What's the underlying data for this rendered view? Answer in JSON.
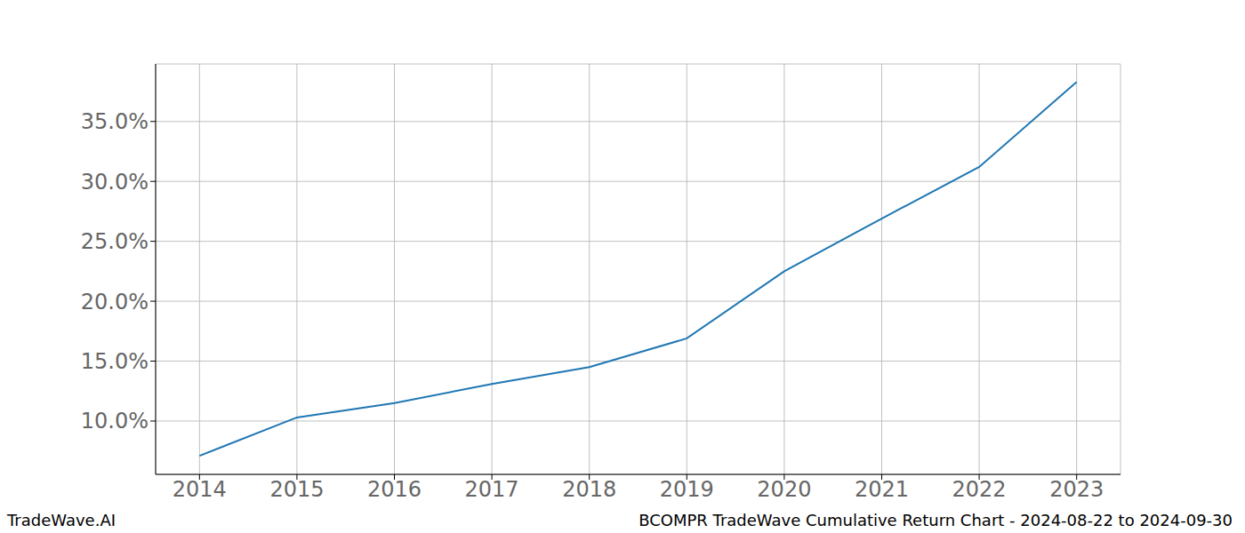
{
  "chart_data": {
    "type": "line",
    "annotations": [
      "TradeWave.AI",
      "BCOMPR TradeWave Cumulative Return Chart - 2024-08-22 to 2024-09-30"
    ],
    "x": [
      2014,
      2015,
      2016,
      2017,
      2018,
      2019,
      2020,
      2021,
      2022,
      2023
    ],
    "values": [
      7.1,
      10.3,
      11.5,
      13.1,
      14.5,
      16.9,
      22.5,
      26.9,
      31.2,
      38.3
    ],
    "color": "#1f77b4",
    "xlim": [
      2013.55,
      2023.45
    ],
    "xticks": [
      2014,
      2015,
      2016,
      2017,
      2018,
      2019,
      2020,
      2021,
      2022,
      2023
    ],
    "ylim": [
      5.55,
      39.8
    ],
    "yticks": [
      {
        "value": 10,
        "label": "10.0%"
      },
      {
        "value": 15,
        "label": "15.0%"
      },
      {
        "value": 20,
        "label": "20.0%"
      },
      {
        "value": 25,
        "label": "25.0%"
      },
      {
        "value": 30,
        "label": "30.0%"
      },
      {
        "value": 35,
        "label": "35.0%"
      }
    ],
    "grid": true
  }
}
